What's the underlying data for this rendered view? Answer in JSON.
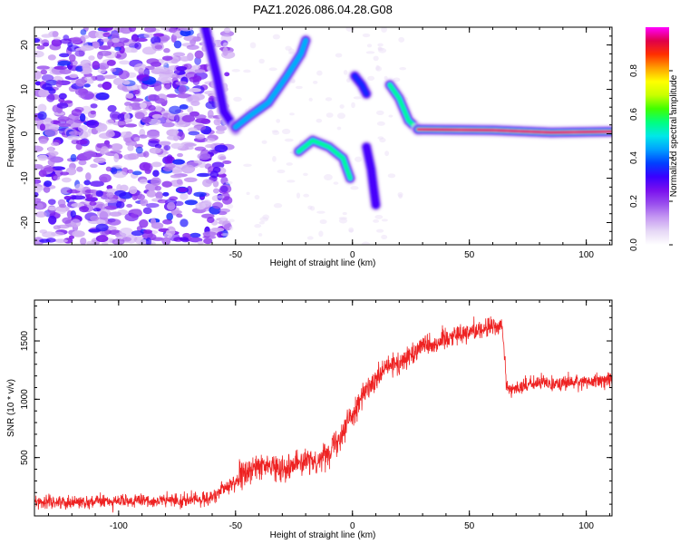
{
  "chart_data": [
    {
      "type": "heatmap",
      "title": "PAZ1.2026.086.04.28.G08",
      "xlabel": "Height of straight line (km)",
      "ylabel": "Frequency (Hz)",
      "xlim": [
        -136,
        111
      ],
      "ylim": [
        -25,
        24
      ],
      "xticks": [
        -100,
        -50,
        0,
        50,
        100
      ],
      "yticks": [
        -20,
        -10,
        0,
        10,
        20
      ],
      "xtick_labels": [
        "-100",
        "-50",
        "0",
        "50",
        "100"
      ],
      "ytick_labels": [
        "-20",
        "-10",
        "0",
        "10",
        "20"
      ],
      "colorbar": {
        "label": "Normalized spectral amplitude",
        "range": [
          0,
          1
        ],
        "ticks": [
          0,
          0.2,
          0.4,
          0.6,
          0.8
        ],
        "tick_labels": [
          "0.0",
          "0.2",
          "0.4",
          "0.6",
          "0.8"
        ],
        "colormap": [
          "#ffffff",
          "#e6d8f6",
          "#c69af2",
          "#9a4fee",
          "#7a10ee",
          "#3a00ff",
          "#0040ff",
          "#00a0ff",
          "#00e8e8",
          "#00ff80",
          "#40ff00",
          "#c8ff00",
          "#ffff00",
          "#ffa000",
          "#ff3000",
          "#e0004a",
          "#ff00ff"
        ]
      },
      "noise_region_x": [
        -136,
        -57
      ],
      "traces": [
        {
          "name": "descending-branch",
          "points": [
            [
              -63,
              24
            ],
            [
              -58,
              13
            ],
            [
              -55,
              5
            ],
            [
              -50,
              1
            ]
          ],
          "amplitude": 0.3
        },
        {
          "name": "rising-branch",
          "points": [
            [
              -50,
              1.5
            ],
            [
              -44,
              4
            ],
            [
              -36,
              7
            ],
            [
              -28,
              13
            ],
            [
              -22,
              18
            ],
            [
              -20,
              21
            ]
          ],
          "amplitude": 0.45
        },
        {
          "name": "central-arc",
          "points": [
            [
              -23,
              -4
            ],
            [
              -17,
              -1.5
            ],
            [
              -10,
              -3
            ],
            [
              -4,
              -5.5
            ],
            [
              -1,
              -10
            ]
          ],
          "amplitude": 0.55
        },
        {
          "name": "spike-near-zero",
          "points": [
            [
              1,
              13
            ],
            [
              4,
              11
            ],
            [
              6,
              9
            ]
          ],
          "amplitude": 0.35
        },
        {
          "name": "spike-near-eight",
          "points": [
            [
              6,
              -3
            ],
            [
              8,
              -8
            ],
            [
              9,
              -12
            ],
            [
              10,
              -16
            ]
          ],
          "amplitude": 0.3
        },
        {
          "name": "post-occultation-rise",
          "points": [
            [
              16,
              11
            ],
            [
              20,
              8
            ],
            [
              24,
              3
            ],
            [
              28,
              1
            ]
          ],
          "amplitude": 0.55
        },
        {
          "name": "stable-carrier",
          "points": [
            [
              28,
              1
            ],
            [
              60,
              0.8
            ],
            [
              85,
              0.3
            ],
            [
              111,
              0.5
            ]
          ],
          "amplitude": 0.95
        }
      ]
    },
    {
      "type": "line",
      "xlabel": "Height of straight line (km)",
      "ylabel": "SNR (10 * v/v)",
      "xlim": [
        -136,
        111
      ],
      "ylim": [
        0,
        1850
      ],
      "xticks": [
        -100,
        -50,
        0,
        50,
        100
      ],
      "yticks": [
        500,
        1000,
        1500
      ],
      "xtick_labels": [
        "-100",
        "-50",
        "0",
        "50",
        "100"
      ],
      "ytick_labels": [
        "500",
        "1000",
        "1500"
      ],
      "color": "#ee2222",
      "series": [
        {
          "name": "SNR",
          "x": [
            -136,
            -120,
            -100,
            -80,
            -65,
            -58,
            -55,
            -50,
            -45,
            -40,
            -35,
            -30,
            -25,
            -20,
            -15,
            -10,
            -5,
            0,
            5,
            10,
            15,
            20,
            25,
            30,
            35,
            40,
            45,
            50,
            55,
            60,
            64,
            65,
            66,
            70,
            80,
            90,
            100,
            111
          ],
          "y": [
            120,
            120,
            125,
            130,
            140,
            170,
            230,
            300,
            380,
            420,
            430,
            410,
            450,
            460,
            470,
            560,
            700,
            880,
            1050,
            1150,
            1280,
            1300,
            1380,
            1480,
            1470,
            1530,
            1560,
            1580,
            1600,
            1620,
            1620,
            1400,
            1080,
            1100,
            1140,
            1140,
            1150,
            1170
          ],
          "noise": [
            60,
            60,
            60,
            60,
            65,
            70,
            90,
            110,
            120,
            120,
            110,
            110,
            110,
            110,
            110,
            120,
            120,
            120,
            110,
            110,
            110,
            110,
            110,
            100,
            100,
            100,
            100,
            90,
            90,
            90,
            90,
            80,
            70,
            70,
            70,
            70,
            70,
            70
          ]
        }
      ]
    }
  ]
}
